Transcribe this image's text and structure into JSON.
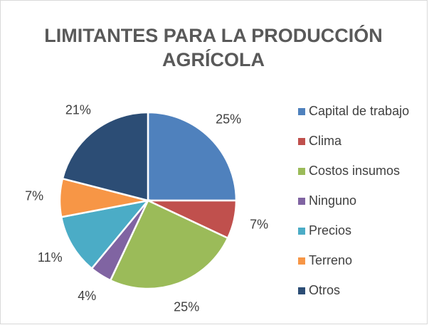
{
  "chart_data": {
    "type": "pie",
    "title": "LIMITANTES PARA LA PRODUCCIÓN AGRÍCOLA",
    "categories": [
      "Capital de trabajo",
      "Clima",
      "Costos insumos",
      "Ninguno",
      "Precios",
      "Terreno",
      "Otros"
    ],
    "values": [
      25,
      7,
      25,
      4,
      11,
      7,
      21
    ],
    "value_labels": [
      "25%",
      "7%",
      "25%",
      "4%",
      "11%",
      "7%",
      "21%"
    ],
    "colors": [
      "#4f81bd",
      "#c0504d",
      "#9bbb59",
      "#8064a2",
      "#4bacc6",
      "#f79646",
      "#2c4d75"
    ],
    "legend": "right"
  }
}
